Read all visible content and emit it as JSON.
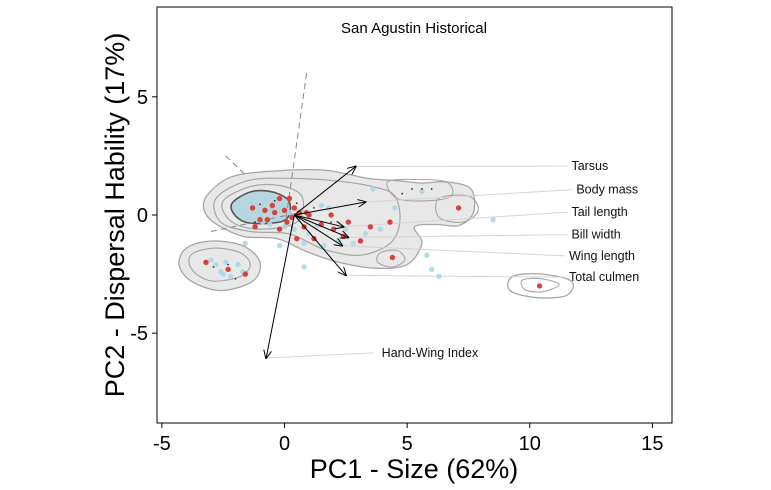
{
  "chart_data": {
    "type": "scatter",
    "title": "San Agustin Historical",
    "xlabel": "PC1 - Size (62%)",
    "ylabel": "PC2 - Dispersal Hability (17%)",
    "xlim": [
      -5.2,
      15.8
    ],
    "ylim": [
      -8.8,
      8.8
    ],
    "xticks": [
      -5,
      0,
      5,
      10,
      15
    ],
    "yticks": [
      -5,
      0,
      5
    ],
    "grid": false,
    "legend": "none",
    "colors": {
      "red_points": "#d9413b",
      "blue_points": "#a9d8e6",
      "contour": "#a6a6a6",
      "contour_inner": "#555555",
      "arrow": "#000000",
      "leader": "#d4d4d4",
      "density_fill": "#e8e8e8"
    },
    "series": [
      {
        "values": [
          [
            -3.2,
            -2.0
          ],
          [
            -2.3,
            -2.3
          ],
          [
            -1.6,
            -2.5
          ],
          [
            -1.3,
            0.3
          ],
          [
            -1.2,
            -0.5
          ],
          [
            -0.8,
            0.2
          ],
          [
            -0.7,
            -0.2
          ],
          [
            -0.5,
            0.4
          ],
          [
            -0.4,
            0.1
          ],
          [
            -0.2,
            0.7
          ],
          [
            -0.2,
            -0.6
          ],
          [
            0.0,
            0.2
          ],
          [
            0.1,
            -0.3
          ],
          [
            0.2,
            0.7
          ],
          [
            0.3,
            -0.1
          ],
          [
            0.4,
            0.3
          ],
          [
            0.5,
            -1.0
          ],
          [
            0.6,
            0.1
          ],
          [
            0.8,
            -0.5
          ],
          [
            1.0,
            0.0
          ],
          [
            1.2,
            -1.0
          ],
          [
            1.5,
            -0.4
          ],
          [
            1.9,
            0.0
          ],
          [
            2.0,
            -0.6
          ],
          [
            2.4,
            -0.9
          ],
          [
            2.6,
            -0.3
          ],
          [
            3.1,
            -1.1
          ],
          [
            3.5,
            -0.5
          ],
          [
            4.3,
            -0.3
          ],
          [
            4.4,
            -1.8
          ],
          [
            7.1,
            0.3
          ],
          [
            10.4,
            -3.0
          ],
          [
            -1.0,
            -0.2
          ],
          [
            0.9,
            0.1
          ]
        ]
      },
      {
        "values": [
          [
            -3.0,
            -1.9
          ],
          [
            -2.8,
            -2.1
          ],
          [
            -2.6,
            -2.4
          ],
          [
            -2.4,
            -2.0
          ],
          [
            -2.2,
            -2.6
          ],
          [
            -1.9,
            -2.1
          ],
          [
            -1.7,
            -2.4
          ],
          [
            -1.6,
            -1.2
          ],
          [
            -2.5,
            -2.5
          ],
          [
            -1.9,
            0.5
          ],
          [
            -1.7,
            0.2
          ],
          [
            -1.5,
            -0.1
          ],
          [
            -1.3,
            0.5
          ],
          [
            -1.1,
            0.1
          ],
          [
            -0.9,
            -0.3
          ],
          [
            -0.8,
            0.6
          ],
          [
            -0.6,
            -0.4
          ],
          [
            -0.5,
            0.2
          ],
          [
            -0.3,
            -0.1
          ],
          [
            -0.1,
            0.4
          ],
          [
            0.0,
            -0.5
          ],
          [
            0.2,
            0.1
          ],
          [
            0.4,
            -0.6
          ],
          [
            0.7,
            0.2
          ],
          [
            0.8,
            -1.2
          ],
          [
            1.0,
            -0.8
          ],
          [
            1.3,
            -0.5
          ],
          [
            1.6,
            -1.3
          ],
          [
            1.8,
            0.3
          ],
          [
            2.2,
            -1.1
          ],
          [
            2.5,
            -0.6
          ],
          [
            2.8,
            -1.2
          ],
          [
            3.3,
            -0.8
          ],
          [
            3.6,
            1.1
          ],
          [
            3.9,
            -0.6
          ],
          [
            4.5,
            0.3
          ],
          [
            5.6,
            1.0
          ],
          [
            5.8,
            -1.7
          ],
          [
            6.0,
            -2.3
          ],
          [
            6.3,
            -2.6
          ],
          [
            8.5,
            -0.2
          ],
          [
            0.8,
            -2.2
          ],
          [
            -0.2,
            -1.3
          ],
          [
            1.5,
            0.4
          ]
        ]
      }
    ],
    "loadings": [
      {
        "name": "Tarsus",
        "x": 2.9,
        "y": 2.05
      },
      {
        "name": "Body mass",
        "x": 3.3,
        "y": 0.55
      },
      {
        "name": "Tail length",
        "x": 2.4,
        "y": -0.5
      },
      {
        "name": "Bill width",
        "x": 2.6,
        "y": -0.95
      },
      {
        "name": "Wing length",
        "x": 2.35,
        "y": -1.3
      },
      {
        "name": "Total culmen",
        "x": 2.5,
        "y": -2.55
      },
      {
        "name": "Hand-Wing Index",
        "x": -0.75,
        "y": -6.05
      }
    ]
  }
}
